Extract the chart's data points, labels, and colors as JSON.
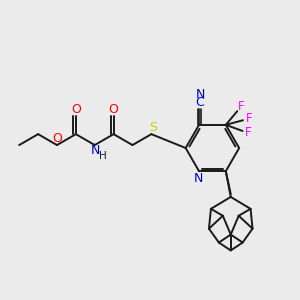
{
  "background_color": "#ebebeb",
  "bond_color": "#1a1a1a",
  "atom_colors": {
    "O": "#ff0000",
    "N": "#0000cc",
    "S": "#cccc00",
    "F": "#ff00ff",
    "C_label": "#0000cc"
  },
  "figsize": [
    3.0,
    3.0
  ],
  "dpi": 100
}
